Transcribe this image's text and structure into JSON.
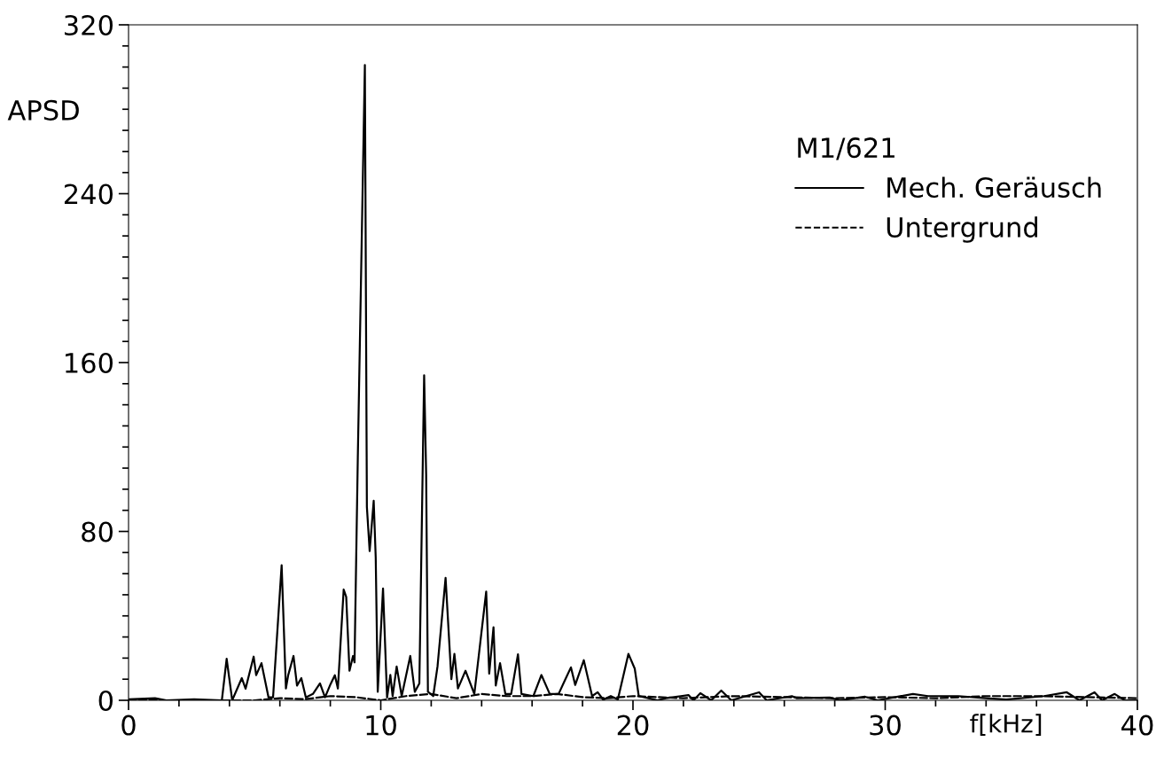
{
  "chart_data": {
    "type": "line",
    "xlabel": "f[kHz]",
    "ylabel": "APSD",
    "legend_title": "M1/621",
    "legend": "top right",
    "grid": false,
    "xlim": [
      0,
      40
    ],
    "ylim": [
      0,
      320
    ],
    "xticks": [
      0,
      {
        "value": 2,
        "label": null
      },
      {
        "value": 4,
        "label": null
      },
      {
        "value": 6,
        "label": null
      },
      {
        "value": 8,
        "label": null
      },
      10,
      {
        "value": 12,
        "label": null
      },
      {
        "value": 14,
        "label": null
      },
      {
        "value": 16,
        "label": null
      },
      {
        "value": 18,
        "label": null
      },
      20,
      {
        "value": 22,
        "label": null
      },
      {
        "value": 24,
        "label": null
      },
      {
        "value": 26,
        "label": null
      },
      {
        "value": 28,
        "label": null
      },
      30,
      {
        "value": 32,
        "label": null
      },
      {
        "value": 34,
        "label": null
      },
      {
        "value": 36,
        "label": null
      },
      {
        "value": 38,
        "label": null
      },
      40
    ],
    "yticks": [
      0,
      {
        "value": 10,
        "label": null
      },
      {
        "value": 20,
        "label": null
      },
      {
        "value": 30,
        "label": null
      },
      {
        "value": 40,
        "label": null
      },
      {
        "value": 50,
        "label": null
      },
      {
        "value": 60,
        "label": null
      },
      {
        "value": 70,
        "label": null
      },
      80,
      {
        "value": 90,
        "label": null
      },
      {
        "value": 100,
        "label": null
      },
      {
        "value": 110,
        "label": null
      },
      {
        "value": 120,
        "label": null
      },
      {
        "value": 130,
        "label": null
      },
      {
        "value": 140,
        "label": null
      },
      {
        "value": 150,
        "label": null
      },
      160,
      {
        "value": 170,
        "label": null
      },
      {
        "value": 180,
        "label": null
      },
      {
        "value": 190,
        "label": null
      },
      {
        "value": 200,
        "label": null
      },
      {
        "value": 210,
        "label": null
      },
      {
        "value": 220,
        "label": null
      },
      {
        "value": 230,
        "label": null
      },
      240,
      {
        "value": 250,
        "label": null
      },
      {
        "value": 260,
        "label": null
      },
      {
        "value": 270,
        "label": null
      },
      {
        "value": 280,
        "label": null
      },
      {
        "value": 290,
        "label": null
      },
      {
        "value": 300,
        "label": null
      },
      {
        "value": 310,
        "label": null
      },
      320
    ],
    "series": [
      {
        "name": "Mech. Geräusch",
        "color": "#000000",
        "line_style": "solid",
        "x": [
          0,
          1.05,
          1.5,
          2.6,
          3.7,
          3.89,
          4.11,
          4.49,
          4.64,
          4.96,
          5.06,
          5.27,
          5.55,
          5.73,
          6.07,
          6.24,
          6.33,
          6.54,
          6.68,
          6.85,
          7.03,
          7.31,
          7.59,
          7.79,
          8.01,
          8.18,
          8.3,
          8.53,
          8.63,
          8.76,
          8.9,
          8.96,
          9.09,
          9.37,
          9.45,
          9.56,
          9.72,
          9.8,
          9.88,
          10.09,
          10.25,
          10.38,
          10.47,
          10.63,
          10.83,
          11.17,
          11.35,
          11.53,
          11.72,
          11.8,
          11.87,
          12.08,
          12.25,
          12.57,
          12.8,
          12.92,
          13.06,
          13.36,
          13.71,
          14.18,
          14.3,
          14.47,
          14.56,
          14.73,
          14.94,
          15.17,
          15.44,
          15.58,
          16.05,
          16.37,
          16.7,
          17.05,
          17.34,
          17.54,
          17.71,
          18.05,
          18.38,
          18.6,
          18.82,
          19.12,
          19.4,
          19.82,
          20.07,
          20.23,
          20.5,
          20.97,
          21.3,
          21.9,
          22.2,
          22.4,
          22.67,
          23.1,
          23.5,
          23.9,
          25.0,
          25.3,
          26.3,
          26.5,
          27.8,
          28.2,
          29.2,
          29.7,
          31.1,
          31.7,
          32.3,
          32.9,
          34.0,
          34.8,
          36.3,
          37.2,
          37.7,
          38.3,
          38.6,
          39.1,
          39.5,
          40
        ],
        "values": [
          0.5,
          1,
          0,
          0.5,
          0,
          19.7,
          0,
          10.5,
          5.5,
          20.7,
          11.9,
          17.6,
          1.4,
          1.4,
          64,
          5.6,
          11.9,
          21,
          7,
          10.5,
          1.4,
          3,
          8,
          1.4,
          7.7,
          11.9,
          5.6,
          52.5,
          49,
          14,
          21,
          18,
          115,
          301,
          91.6,
          70.7,
          94.5,
          67.8,
          4,
          53,
          1.3,
          12,
          2,
          16,
          2,
          21,
          4,
          8,
          154,
          107,
          4,
          2,
          16,
          58,
          10,
          22,
          5.6,
          14,
          3,
          51.5,
          12.6,
          34.6,
          7,
          17.6,
          3,
          3,
          21.8,
          3,
          2,
          12,
          3,
          3,
          10.5,
          15.6,
          7.3,
          19,
          2,
          3.8,
          0.3,
          2,
          0.4,
          22,
          15,
          2,
          1.3,
          0,
          1,
          2,
          2.5,
          0,
          3.4,
          0,
          4.6,
          0,
          3.8,
          0,
          2,
          1,
          1.3,
          0,
          1.7,
          0,
          3,
          2,
          2,
          2,
          1,
          0.4,
          2,
          3.8,
          0,
          3.8,
          0,
          3,
          0,
          0
        ]
      },
      {
        "name": "Untergrund",
        "color": "#000000",
        "line_style": "dashed",
        "x": [
          0,
          5,
          6,
          7,
          8,
          9,
          10,
          11,
          12,
          13,
          14,
          15,
          16,
          17,
          18,
          19,
          20,
          22,
          24,
          26,
          28,
          30,
          32,
          34,
          36,
          38,
          40
        ],
        "values": [
          0,
          0,
          1,
          0.5,
          2,
          1.5,
          0,
          2,
          3,
          1,
          3,
          2,
          2,
          3,
          1.5,
          1,
          2,
          1,
          2,
          1.5,
          1,
          1.5,
          1,
          2,
          2,
          1.5,
          1
        ]
      }
    ]
  }
}
